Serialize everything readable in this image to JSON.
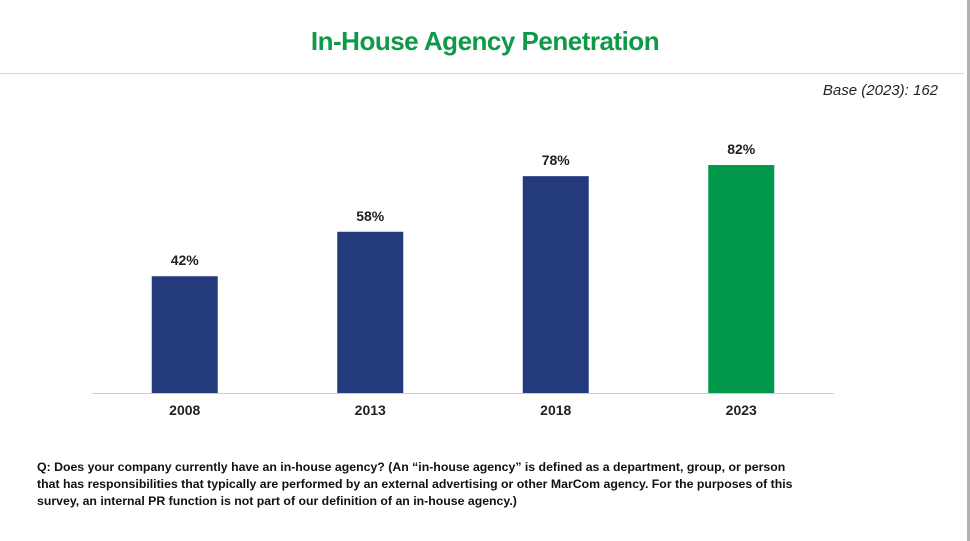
{
  "header": {
    "title": "In-House Agency Penetration",
    "base_note": "Base (2023): 162"
  },
  "colors": {
    "title": "#0e9a48",
    "bar_default": "#233a7d",
    "bar_highlight": "#00994b",
    "axis": "#cccccc",
    "label": "#222222"
  },
  "chart_data": {
    "type": "bar",
    "title": "In-House Agency Penetration",
    "xlabel": "",
    "ylabel": "",
    "categories": [
      "2008",
      "2013",
      "2018",
      "2023"
    ],
    "values": [
      42,
      58,
      78,
      82
    ],
    "data_labels": [
      "42%",
      "58%",
      "78%",
      "82%"
    ],
    "highlight_category": "2023",
    "ylim": [
      0,
      100
    ],
    "grid": false,
    "legend": "none"
  },
  "footer": {
    "question": "Q: Does your company currently have an in-house agency? (An “in-house agency” is defined as a department, group, or person that has responsibilities that typically are performed by an external advertising or other MarCom agency. For the purposes of this survey, an internal PR function is not part of our definition of an in-house agency.)"
  }
}
